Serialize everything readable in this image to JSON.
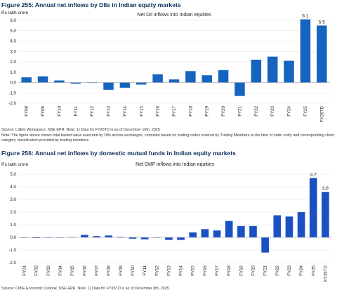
{
  "figures": [
    {
      "figure_title": "Figure 255: Annual net inflows by DIIs in Indian equity markets",
      "source": "Source: LSEG Workspace, NSE EPR. Note: 1) Data for FY26TD is as of December 10th, 2025",
      "note": "Note: The figure above shows total traded value executed by DIIs across exchanges, compiled based on trading codes entered by Trading Members at the time of order entry and corresponding client category classification provided by trading members."
    },
    {
      "figure_title": "Figure 256: Annual net inflows by domestic mutual funds in Indian equity markets",
      "source": "Source: CMIE Economic Outlook, NSE EPR. Note: 1) Data for FY26TD is as of December 8th, 2025."
    }
  ],
  "chart_data": [
    {
      "type": "bar",
      "title": "Net DII inflows into Indian equities",
      "ylabel": "Rs lakh crore",
      "xlabel": "",
      "ylim": [
        -2.0,
        6.0
      ],
      "yticks": [
        "-2.0",
        "-1.0",
        "0.0",
        "1.0",
        "2.0",
        "3.0",
        "4.0",
        "5.0",
        "6.0"
      ],
      "categories": [
        "FY08",
        "FY09",
        "FY10",
        "FY11",
        "FY12",
        "FY13",
        "FY14",
        "FY15",
        "FY16",
        "FY17",
        "FY18",
        "FY19",
        "FY20",
        "FY21",
        "FY22",
        "FY23",
        "FY24",
        "FY25",
        "FY26TD"
      ],
      "values": [
        0.5,
        0.6,
        0.2,
        -0.1,
        0.0,
        -0.7,
        -0.5,
        -0.2,
        0.8,
        0.3,
        1.1,
        0.7,
        1.2,
        -1.3,
        2.2,
        2.5,
        2.1,
        6.1,
        5.5
      ],
      "data_labels": {
        "FY25": "6.1",
        "FY26TD": "5.5"
      },
      "grid": true,
      "bar_color": "#1565c0"
    },
    {
      "type": "bar",
      "title": "Net DMF inflows into Indian equities",
      "ylabel": "Rs lakh crore",
      "xlabel": "",
      "ylim": [
        -2.0,
        5.0
      ],
      "yticks": [
        "-2.0",
        "-1.0",
        "0.0",
        "1.0",
        "2.0",
        "3.0",
        "4.0",
        "5.0"
      ],
      "categories": [
        "FY01",
        "FY02",
        "FY03",
        "FY04",
        "FY05",
        "FY06",
        "FY07",
        "FY08",
        "FY09",
        "FY10",
        "FY11",
        "FY12",
        "FY13",
        "FY14",
        "FY15",
        "FY16",
        "FY17",
        "FY18",
        "FY19",
        "FY20",
        "FY21",
        "FY22",
        "FY23",
        "FY24",
        "FY25",
        "FY26TD"
      ],
      "values": [
        -0.03,
        -0.05,
        -0.02,
        -0.03,
        0.03,
        0.2,
        0.1,
        0.15,
        0.05,
        -0.1,
        -0.15,
        0.0,
        -0.2,
        -0.2,
        0.4,
        0.65,
        0.55,
        1.3,
        0.9,
        0.9,
        -1.2,
        1.75,
        1.65,
        2.0,
        4.7,
        3.6
      ],
      "data_labels": {
        "FY25": "4.7",
        "FY26TD": "3.6"
      },
      "grid": true,
      "bar_color": "#1b4fc4"
    }
  ]
}
